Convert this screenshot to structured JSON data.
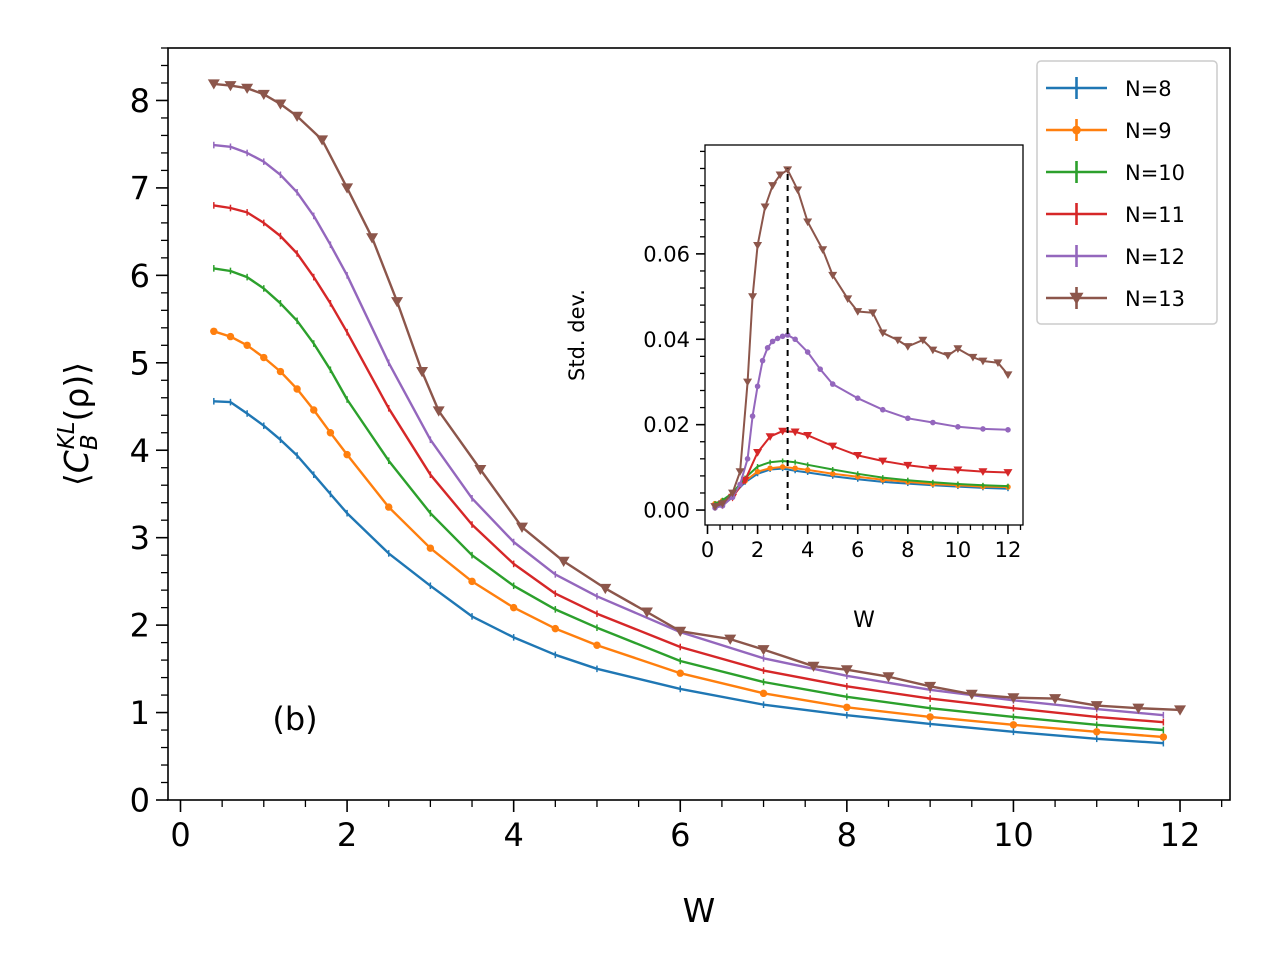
{
  "chart_data": [
    {
      "id": "main",
      "type": "line",
      "panel_label": "(b)",
      "xlabel": "W",
      "ylabel": "⟨C_B^{KL}(ρ)⟩",
      "ylabel_parts": {
        "open": "⟨",
        "C": "C",
        "sub": "B",
        "sup": "KL",
        "rest": "(ρ)",
        "close": "⟩"
      },
      "xlim": [
        -0.15,
        12.6
      ],
      "ylim": [
        0,
        8.6
      ],
      "xticks": [
        0,
        2,
        4,
        6,
        8,
        10,
        12
      ],
      "yticks": [
        0,
        1,
        2,
        3,
        4,
        5,
        6,
        7,
        8
      ],
      "series": [
        {
          "name": "N=8",
          "color": "#1f77b4",
          "marker": "tick",
          "x": [
            0.4,
            0.6,
            0.8,
            1.0,
            1.2,
            1.4,
            1.6,
            1.8,
            2.0,
            2.5,
            3.0,
            3.5,
            4.0,
            4.5,
            5.0,
            6.0,
            7.0,
            8.0,
            9.0,
            10.0,
            11.0,
            11.8
          ],
          "y": [
            4.56,
            4.55,
            4.42,
            4.28,
            4.12,
            3.94,
            3.72,
            3.5,
            3.28,
            2.82,
            2.45,
            2.1,
            1.86,
            1.66,
            1.5,
            1.27,
            1.09,
            0.97,
            0.87,
            0.78,
            0.7,
            0.65
          ]
        },
        {
          "name": "N=9",
          "color": "#ff7f0e",
          "marker": "dot",
          "x": [
            0.4,
            0.6,
            0.8,
            1.0,
            1.2,
            1.4,
            1.6,
            1.8,
            2.0,
            2.5,
            3.0,
            3.5,
            4.0,
            4.5,
            5.0,
            6.0,
            7.0,
            8.0,
            9.0,
            10.0,
            11.0,
            11.8
          ],
          "y": [
            5.36,
            5.3,
            5.2,
            5.06,
            4.9,
            4.7,
            4.46,
            4.2,
            3.95,
            3.35,
            2.88,
            2.5,
            2.2,
            1.96,
            1.77,
            1.45,
            1.22,
            1.06,
            0.95,
            0.86,
            0.78,
            0.72
          ]
        },
        {
          "name": "N=10",
          "color": "#2ca02c",
          "marker": "tick",
          "x": [
            0.4,
            0.6,
            0.8,
            1.0,
            1.2,
            1.4,
            1.6,
            1.8,
            2.0,
            2.5,
            3.0,
            3.5,
            4.0,
            4.5,
            5.0,
            6.0,
            7.0,
            8.0,
            9.0,
            10.0,
            11.0,
            11.8
          ],
          "y": [
            6.08,
            6.05,
            5.98,
            5.85,
            5.68,
            5.48,
            5.22,
            4.92,
            4.58,
            3.88,
            3.28,
            2.8,
            2.45,
            2.18,
            1.97,
            1.59,
            1.35,
            1.18,
            1.05,
            0.95,
            0.86,
            0.8
          ]
        },
        {
          "name": "N=11",
          "color": "#d62728",
          "marker": "tick",
          "x": [
            0.4,
            0.6,
            0.8,
            1.0,
            1.2,
            1.4,
            1.6,
            1.8,
            2.0,
            2.5,
            3.0,
            3.5,
            4.0,
            4.5,
            5.0,
            6.0,
            7.0,
            8.0,
            9.0,
            10.0,
            11.0,
            11.8
          ],
          "y": [
            6.8,
            6.77,
            6.72,
            6.6,
            6.45,
            6.25,
            5.98,
            5.68,
            5.35,
            4.48,
            3.72,
            3.15,
            2.7,
            2.36,
            2.13,
            1.75,
            1.48,
            1.3,
            1.16,
            1.05,
            0.95,
            0.89
          ]
        },
        {
          "name": "N=12",
          "color": "#9467bd",
          "marker": "tick",
          "x": [
            0.4,
            0.6,
            0.8,
            1.0,
            1.2,
            1.4,
            1.6,
            1.8,
            2.0,
            2.5,
            3.0,
            3.5,
            4.0,
            4.5,
            5.0,
            6.0,
            7.0,
            8.0,
            9.0,
            10.0,
            11.0,
            11.8
          ],
          "y": [
            7.49,
            7.47,
            7.4,
            7.3,
            7.15,
            6.95,
            6.68,
            6.35,
            6.0,
            5.0,
            4.12,
            3.45,
            2.95,
            2.58,
            2.33,
            1.92,
            1.62,
            1.42,
            1.26,
            1.14,
            1.04,
            0.97
          ]
        },
        {
          "name": "N=13",
          "color": "#8c564b",
          "marker": "triangle",
          "x": [
            0.4,
            0.6,
            0.8,
            1.0,
            1.2,
            1.4,
            1.7,
            2.0,
            2.3,
            2.6,
            2.9,
            3.1,
            3.6,
            4.1,
            4.6,
            5.1,
            5.6,
            6.0,
            6.6,
            7.0,
            7.6,
            8.0,
            8.5,
            9.0,
            9.5,
            10.0,
            10.5,
            11.0,
            11.5,
            12.0
          ],
          "y": [
            8.19,
            8.17,
            8.14,
            8.07,
            7.96,
            7.82,
            7.55,
            7.0,
            6.43,
            5.7,
            4.9,
            4.45,
            3.78,
            3.12,
            2.73,
            2.42,
            2.15,
            1.93,
            1.84,
            1.72,
            1.53,
            1.49,
            1.41,
            1.3,
            1.21,
            1.17,
            1.16,
            1.08,
            1.05,
            1.03
          ]
        }
      ]
    },
    {
      "id": "inset",
      "type": "line",
      "xlabel": "W",
      "ylabel": "Std. dev.",
      "xlim": [
        -0.1,
        12.6
      ],
      "ylim": [
        -0.0035,
        0.0855
      ],
      "xticks": [
        0,
        2,
        4,
        6,
        8,
        10,
        12
      ],
      "yticks": [
        0.0,
        0.02,
        0.04,
        0.06
      ],
      "ytick_labels": [
        "0.00",
        "0.02",
        "0.04",
        "0.06"
      ],
      "vline_x": 3.2,
      "series": [
        {
          "name": "N=8",
          "color": "#1f77b4",
          "marker": "tick",
          "x": [
            0.3,
            0.6,
            1.0,
            1.5,
            2.0,
            2.5,
            3.0,
            3.5,
            4.0,
            5.0,
            6.0,
            7.0,
            8.0,
            9.0,
            10.0,
            11.0,
            12.0
          ],
          "y": [
            0.0015,
            0.002,
            0.0035,
            0.0065,
            0.0085,
            0.0095,
            0.0097,
            0.0092,
            0.0088,
            0.0079,
            0.0072,
            0.0066,
            0.0062,
            0.0058,
            0.0055,
            0.0052,
            0.005
          ]
        },
        {
          "name": "N=9",
          "color": "#ff7f0e",
          "marker": "dot",
          "x": [
            0.3,
            0.6,
            1.0,
            1.5,
            2.0,
            2.5,
            3.0,
            3.5,
            4.0,
            5.0,
            6.0,
            7.0,
            8.0,
            9.0,
            10.0,
            11.0,
            12.0
          ],
          "y": [
            0.0015,
            0.0022,
            0.0038,
            0.0068,
            0.009,
            0.0098,
            0.0101,
            0.0098,
            0.0094,
            0.0085,
            0.0078,
            0.0071,
            0.0066,
            0.0061,
            0.0058,
            0.0055,
            0.0054
          ]
        },
        {
          "name": "N=10",
          "color": "#2ca02c",
          "marker": "tick",
          "x": [
            0.3,
            0.6,
            1.0,
            1.5,
            2.0,
            2.5,
            3.0,
            3.5,
            4.0,
            5.0,
            6.0,
            7.0,
            8.0,
            9.0,
            10.0,
            11.0,
            12.0
          ],
          "y": [
            0.0015,
            0.0023,
            0.004,
            0.0075,
            0.0102,
            0.0112,
            0.0115,
            0.0112,
            0.0106,
            0.0095,
            0.0085,
            0.0076,
            0.007,
            0.0065,
            0.0061,
            0.0058,
            0.0056
          ]
        },
        {
          "name": "N=11",
          "color": "#d62728",
          "marker": "triangle",
          "x": [
            0.3,
            0.6,
            1.0,
            1.5,
            2.0,
            2.5,
            3.0,
            3.5,
            4.0,
            5.0,
            6.0,
            7.0,
            8.0,
            9.0,
            10.0,
            11.0,
            12.0
          ],
          "y": [
            0.0008,
            0.0012,
            0.003,
            0.007,
            0.0135,
            0.0172,
            0.0185,
            0.0183,
            0.0175,
            0.015,
            0.0128,
            0.0115,
            0.0105,
            0.0098,
            0.0094,
            0.009,
            0.0088
          ]
        },
        {
          "name": "N=12",
          "color": "#9467bd",
          "marker": "dot",
          "x": [
            0.3,
            0.6,
            1.0,
            1.3,
            1.6,
            1.8,
            2.0,
            2.2,
            2.4,
            2.6,
            2.8,
            3.0,
            3.2,
            3.5,
            4.0,
            4.5,
            5.0,
            6.0,
            7.0,
            8.0,
            9.0,
            10.0,
            11.0,
            12.0
          ],
          "y": [
            0.0005,
            0.001,
            0.003,
            0.006,
            0.012,
            0.022,
            0.029,
            0.035,
            0.038,
            0.0395,
            0.0402,
            0.0407,
            0.041,
            0.04,
            0.037,
            0.033,
            0.0295,
            0.0262,
            0.0235,
            0.0215,
            0.0205,
            0.0195,
            0.019,
            0.0188
          ]
        },
        {
          "name": "N=13",
          "color": "#8c564b",
          "marker": "triangle",
          "x": [
            0.3,
            0.6,
            1.0,
            1.3,
            1.6,
            1.8,
            2.0,
            2.3,
            2.6,
            2.9,
            3.2,
            3.6,
            4.0,
            4.6,
            5.0,
            5.6,
            6.0,
            6.6,
            7.0,
            7.6,
            8.0,
            8.6,
            9.0,
            9.6,
            10.0,
            10.6,
            11.0,
            11.6,
            12.0
          ],
          "y": [
            0.0008,
            0.0015,
            0.004,
            0.009,
            0.03,
            0.05,
            0.062,
            0.071,
            0.076,
            0.0785,
            0.0797,
            0.075,
            0.0675,
            0.061,
            0.055,
            0.0495,
            0.0465,
            0.0462,
            0.0415,
            0.0398,
            0.0383,
            0.0398,
            0.0375,
            0.0362,
            0.0378,
            0.0358,
            0.0349,
            0.0345,
            0.0317
          ]
        }
      ]
    }
  ]
}
